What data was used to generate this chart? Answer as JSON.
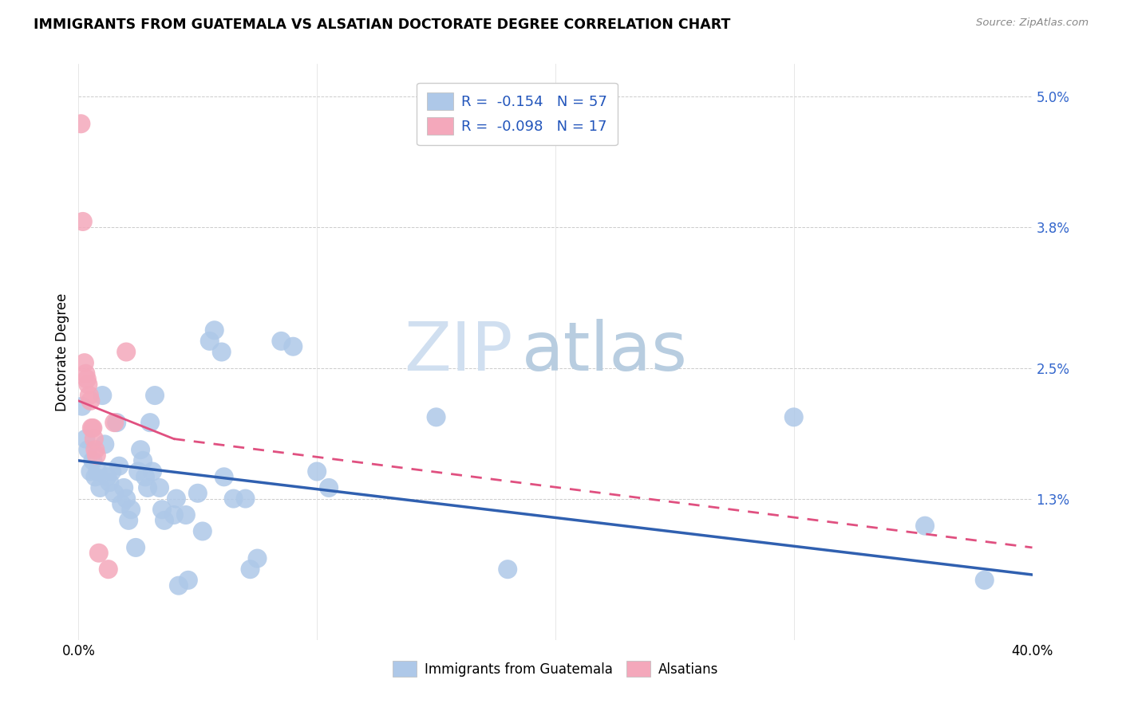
{
  "title": "IMMIGRANTS FROM GUATEMALA VS ALSATIAN DOCTORATE DEGREE CORRELATION CHART",
  "source": "Source: ZipAtlas.com",
  "ylabel": "Doctorate Degree",
  "yticks": [
    0.0,
    1.3,
    2.5,
    3.8,
    5.0
  ],
  "ytick_labels": [
    "",
    "1.3%",
    "2.5%",
    "3.8%",
    "5.0%"
  ],
  "xlim": [
    0.0,
    40.0
  ],
  "ylim": [
    0.0,
    5.3
  ],
  "legend_r1": "R =  -0.154   N = 57",
  "legend_r2": "R =  -0.098   N = 17",
  "blue_color": "#aec8e8",
  "pink_color": "#f4a8bb",
  "blue_line_color": "#3060b0",
  "pink_line_color": "#e05080",
  "watermark_zip": "ZIP",
  "watermark_atlas": "atlas",
  "guatemala_points": [
    [
      0.15,
      2.15
    ],
    [
      0.3,
      1.85
    ],
    [
      0.4,
      1.75
    ],
    [
      0.5,
      1.55
    ],
    [
      0.6,
      1.65
    ],
    [
      0.7,
      1.5
    ],
    [
      0.8,
      1.55
    ],
    [
      0.9,
      1.4
    ],
    [
      1.0,
      2.25
    ],
    [
      1.1,
      1.8
    ],
    [
      1.2,
      1.5
    ],
    [
      1.3,
      1.45
    ],
    [
      1.4,
      1.55
    ],
    [
      1.5,
      1.35
    ],
    [
      1.6,
      2.0
    ],
    [
      1.7,
      1.6
    ],
    [
      1.8,
      1.25
    ],
    [
      1.9,
      1.4
    ],
    [
      2.0,
      1.3
    ],
    [
      2.1,
      1.1
    ],
    [
      2.2,
      1.2
    ],
    [
      2.4,
      0.85
    ],
    [
      2.5,
      1.55
    ],
    [
      2.6,
      1.75
    ],
    [
      2.7,
      1.65
    ],
    [
      2.8,
      1.5
    ],
    [
      2.9,
      1.4
    ],
    [
      3.0,
      2.0
    ],
    [
      3.1,
      1.55
    ],
    [
      3.2,
      2.25
    ],
    [
      3.4,
      1.4
    ],
    [
      3.5,
      1.2
    ],
    [
      3.6,
      1.1
    ],
    [
      4.0,
      1.15
    ],
    [
      4.1,
      1.3
    ],
    [
      4.2,
      0.5
    ],
    [
      4.5,
      1.15
    ],
    [
      4.6,
      0.55
    ],
    [
      5.0,
      1.35
    ],
    [
      5.2,
      1.0
    ],
    [
      5.5,
      2.75
    ],
    [
      5.7,
      2.85
    ],
    [
      6.0,
      2.65
    ],
    [
      6.1,
      1.5
    ],
    [
      6.5,
      1.3
    ],
    [
      7.0,
      1.3
    ],
    [
      7.2,
      0.65
    ],
    [
      7.5,
      0.75
    ],
    [
      8.5,
      2.75
    ],
    [
      9.0,
      2.7
    ],
    [
      10.0,
      1.55
    ],
    [
      10.5,
      1.4
    ],
    [
      15.0,
      2.05
    ],
    [
      18.0,
      0.65
    ],
    [
      30.0,
      2.05
    ],
    [
      35.5,
      1.05
    ],
    [
      38.0,
      0.55
    ]
  ],
  "alsatian_points": [
    [
      0.1,
      4.75
    ],
    [
      0.18,
      3.85
    ],
    [
      0.25,
      2.55
    ],
    [
      0.3,
      2.45
    ],
    [
      0.35,
      2.4
    ],
    [
      0.4,
      2.35
    ],
    [
      0.45,
      2.25
    ],
    [
      0.5,
      2.2
    ],
    [
      0.55,
      1.95
    ],
    [
      0.6,
      1.95
    ],
    [
      0.65,
      1.85
    ],
    [
      0.7,
      1.75
    ],
    [
      0.75,
      1.7
    ],
    [
      1.5,
      2.0
    ],
    [
      2.0,
      2.65
    ],
    [
      0.85,
      0.8
    ],
    [
      1.25,
      0.65
    ]
  ],
  "blue_trend": [
    0.0,
    40.0,
    1.65,
    0.6
  ],
  "pink_trend_solid": [
    0.0,
    4.0,
    2.2,
    1.85
  ],
  "pink_trend_dash": [
    4.0,
    40.0,
    1.85,
    0.85
  ]
}
